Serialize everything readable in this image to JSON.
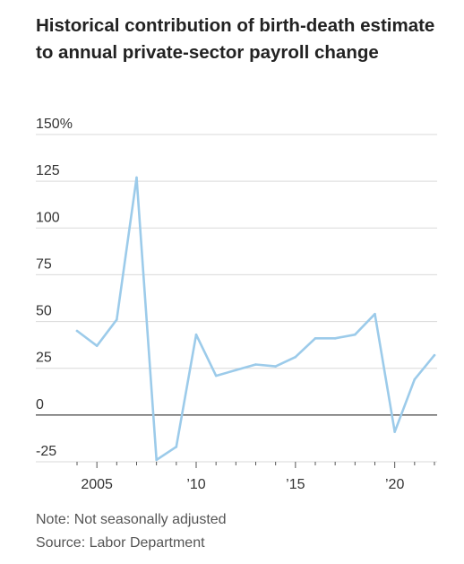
{
  "title": "Historical contribution of birth-death estimate to annual private-sector payroll change",
  "note": "Note: Not seasonally adjusted",
  "source": "Source: Labor Department",
  "chart_data": {
    "type": "line",
    "title": "Historical contribution of birth-death estimate to annual private-sector payroll change",
    "xlabel": "",
    "ylabel": "",
    "ylim": [
      -25,
      150
    ],
    "yticks": [
      {
        "value": 150,
        "label": "150%"
      },
      {
        "value": 125,
        "label": "125"
      },
      {
        "value": 100,
        "label": "100"
      },
      {
        "value": 75,
        "label": "75"
      },
      {
        "value": 50,
        "label": "50"
      },
      {
        "value": 25,
        "label": "25"
      },
      {
        "value": 0,
        "label": "0"
      },
      {
        "value": -25,
        "label": "-25"
      }
    ],
    "xticks": [
      {
        "value": 2005,
        "label": "2005"
      },
      {
        "value": 2010,
        "label": "’10"
      },
      {
        "value": 2015,
        "label": "’15"
      },
      {
        "value": 2020,
        "label": "’20"
      }
    ],
    "xlim": [
      2004,
      2022
    ],
    "grid": true,
    "line_color": "#9ccbea",
    "series": [
      {
        "x": [
          2004,
          2005,
          2006,
          2007,
          2008,
          2009,
          2010,
          2011,
          2012,
          2013,
          2014,
          2015,
          2016,
          2017,
          2018,
          2019,
          2020,
          2021,
          2022
        ],
        "values": [
          45,
          37,
          51,
          127,
          -24,
          -17,
          43,
          21,
          24,
          27,
          26,
          31,
          41,
          41,
          43,
          54,
          -9,
          19,
          32
        ]
      }
    ]
  }
}
